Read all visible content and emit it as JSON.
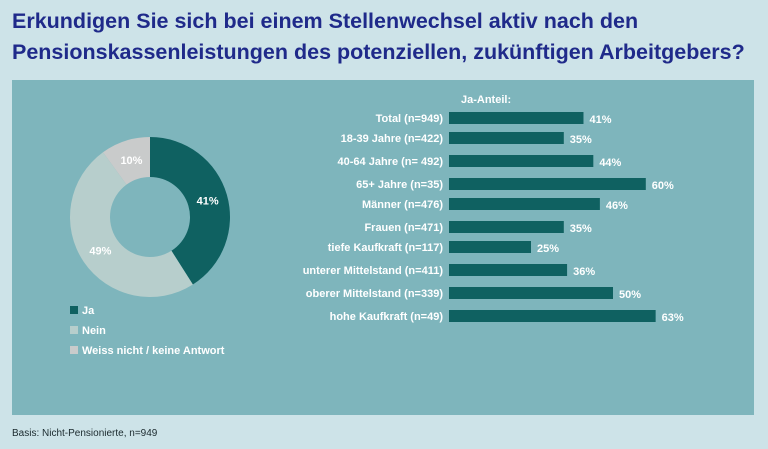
{
  "title_line1": "Erkundigen Sie sich bei einem Stellenwechsel aktiv nach den",
  "title_line2": "Pensionskassenleistungen des potenziellen, zukünftigen Arbeitgebers?",
  "footnote": "Basis: Nicht-Pensionierte, n=949",
  "colors": {
    "panel": "#7eb5bc",
    "bar": "#0f6161",
    "ja": "#0f6161",
    "nein": "#b7cecc",
    "weiss_nicht": "#c9cbcb",
    "label_text": "#ffffff"
  },
  "chart_data": [
    {
      "type": "pie",
      "style": "donut",
      "slices": [
        {
          "label": "Ja",
          "value": 41,
          "value_label": "41%",
          "color_key": "ja"
        },
        {
          "label": "Nein",
          "value": 49,
          "value_label": "49%",
          "color_key": "nein"
        },
        {
          "label": "Weiss nicht / keine Antwort",
          "value": 10,
          "value_label": "10%",
          "color_key": "weiss_nicht"
        }
      ],
      "legend": [
        "Ja",
        "Nein",
        "Weiss nicht / keine Antwort"
      ],
      "legend_position": "bottom-left"
    },
    {
      "type": "bar",
      "orientation": "horizontal",
      "header": "Ja-Anteil:",
      "xlim": [
        0,
        100
      ],
      "groups": [
        {
          "items": [
            {
              "label": "Total (n=949)",
              "value": 41,
              "value_label": "41%"
            }
          ]
        },
        {
          "items": [
            {
              "label": "18-39 Jahre (n=422)",
              "value": 35,
              "value_label": "35%"
            },
            {
              "label": "40-64 Jahre (n= 492)",
              "value": 44,
              "value_label": "44%"
            },
            {
              "label": "65+ Jahre (n=35)",
              "value": 60,
              "value_label": "60%"
            }
          ]
        },
        {
          "items": [
            {
              "label": "Männer (n=476)",
              "value": 46,
              "value_label": "46%"
            },
            {
              "label": "Frauen (n=471)",
              "value": 35,
              "value_label": "35%"
            }
          ]
        },
        {
          "items": [
            {
              "label": "tiefe Kaufkraft (n=117)",
              "value": 25,
              "value_label": "25%"
            },
            {
              "label": "unterer Mittelstand (n=411)",
              "value": 36,
              "value_label": "36%"
            },
            {
              "label": "oberer Mittelstand (n=339)",
              "value": 50,
              "value_label": "50%"
            },
            {
              "label": "hohe Kaufkraft (n=49)",
              "value": 63,
              "value_label": "63%"
            }
          ]
        }
      ]
    }
  ]
}
